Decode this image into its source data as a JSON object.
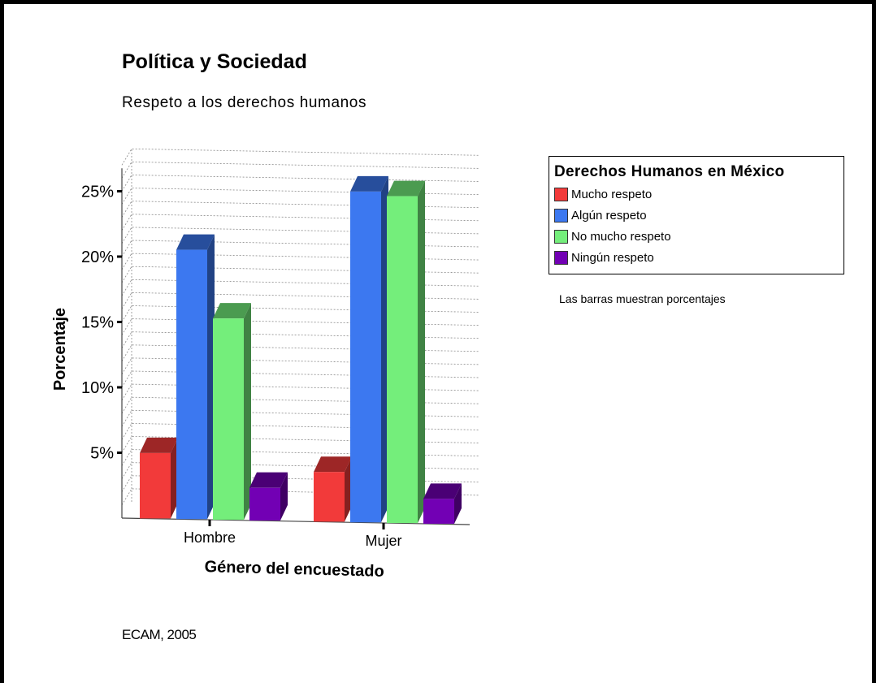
{
  "header": {
    "title": "Política y Sociedad",
    "subtitle": "Respeto a los derechos humanos"
  },
  "note": "Las barras muestran porcentajes",
  "source": "ECAM, 2005",
  "chart_data": {
    "type": "bar",
    "style": "3d-grouped",
    "categories": [
      "Hombre",
      "Mujer"
    ],
    "xlabel": "Género del encuestado",
    "ylabel": "Porcentaje",
    "ylim": [
      0,
      27
    ],
    "yticks": [
      "5%",
      "10%",
      "15%",
      "20%",
      "25%"
    ],
    "grid": true,
    "legend_title": "Derechos Humanos en México",
    "legend_position": "right",
    "series": [
      {
        "name": "Mucho respeto",
        "color": "#f23a3a",
        "values": [
          5,
          3.8
        ]
      },
      {
        "name": "Algún respeto",
        "color": "#3c78f0",
        "values": [
          20.6,
          25.3
        ]
      },
      {
        "name": "No mucho respeto",
        "color": "#74ee7b",
        "values": [
          15.4,
          25
        ]
      },
      {
        "name": "Ningún respeto",
        "color": "#7200b4",
        "values": [
          2.5,
          1.9
        ]
      }
    ]
  }
}
